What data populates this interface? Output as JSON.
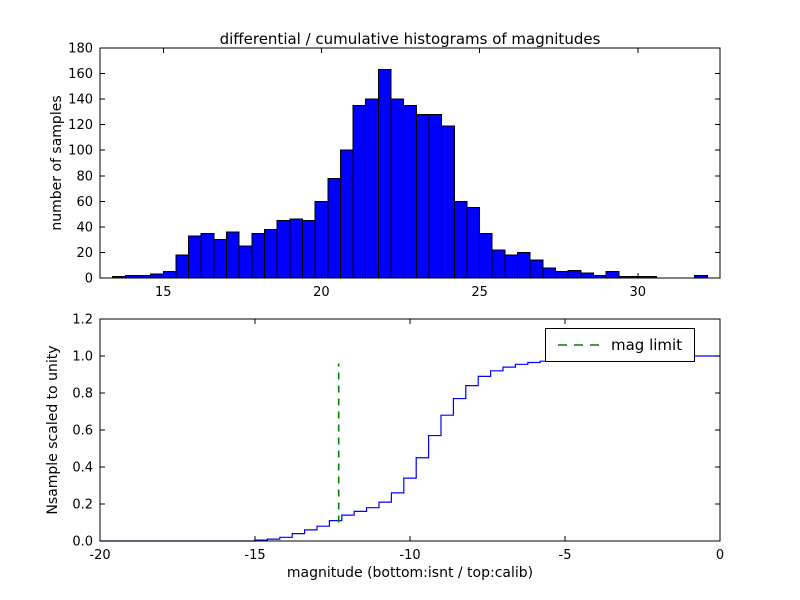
{
  "chart_data": [
    {
      "type": "bar",
      "title": "differential / cumulative histograms of magnitudes",
      "ylabel": "number of samples",
      "xlabel": "",
      "xlim": [
        13.0,
        32.6
      ],
      "ylim": [
        0,
        180
      ],
      "xticks": [
        15,
        20,
        25,
        30
      ],
      "xtick_labels": [
        "15",
        "20",
        "25",
        "30"
      ],
      "yticks": [
        0,
        20,
        40,
        60,
        80,
        100,
        120,
        140,
        160,
        180
      ],
      "ytick_labels": [
        "0",
        "20",
        "40",
        "60",
        "80",
        "100",
        "120",
        "140",
        "160",
        "180"
      ],
      "bar_color": "#0000ff",
      "bar_edge_color": "#000000",
      "bin_start": 13.4,
      "bin_width": 0.4,
      "counts": [
        1,
        2,
        2,
        3,
        5,
        18,
        33,
        35,
        30,
        36,
        25,
        35,
        38,
        45,
        46,
        45,
        60,
        78,
        100,
        135,
        140,
        163,
        140,
        135,
        128,
        128,
        119,
        60,
        55,
        35,
        22,
        18,
        20,
        14,
        8,
        5,
        6,
        4,
        2,
        5,
        1,
        1,
        1,
        0,
        0,
        0,
        2
      ]
    },
    {
      "type": "line",
      "title": "",
      "ylabel": "Nsample scaled to unity",
      "xlabel": "magnitude (bottom:isnt / top:calib)",
      "xlim": [
        -20,
        0
      ],
      "ylim": [
        0,
        1.2
      ],
      "xticks": [
        -20,
        -15,
        -10,
        -5,
        0
      ],
      "xtick_labels": [
        "-20",
        "-15",
        "-10",
        "-5",
        "0"
      ],
      "yticks": [
        0,
        0.2,
        0.4,
        0.6,
        0.8,
        1.0,
        1.2
      ],
      "ytick_labels": [
        "0.0",
        "0.2",
        "0.4",
        "0.6",
        "0.8",
        "1.0",
        "1.2"
      ],
      "line_color": "#0000ff",
      "step": true,
      "x": [
        -20,
        -15.0,
        -14.6,
        -14.2,
        -13.8,
        -13.4,
        -13.0,
        -12.6,
        -12.2,
        -11.8,
        -11.4,
        -11.0,
        -10.6,
        -10.2,
        -9.8,
        -9.4,
        -9.0,
        -8.6,
        -8.2,
        -7.8,
        -7.4,
        -7.0,
        -6.6,
        -6.2,
        -5.8,
        -5.4,
        -5.0,
        -4.6,
        -4.2,
        -3.8,
        -3.4,
        -3.0,
        -2.6,
        -2.2,
        -1.8,
        -1.4,
        -1.0,
        0
      ],
      "y": [
        0,
        0.005,
        0.01,
        0.02,
        0.04,
        0.06,
        0.08,
        0.11,
        0.14,
        0.16,
        0.18,
        0.21,
        0.26,
        0.34,
        0.45,
        0.57,
        0.68,
        0.77,
        0.84,
        0.89,
        0.92,
        0.94,
        0.955,
        0.965,
        0.972,
        0.978,
        0.983,
        0.987,
        0.99,
        0.992,
        0.994,
        0.996,
        0.997,
        0.998,
        0.998,
        1.0,
        1.0,
        1.0
      ],
      "vline": {
        "x": -12.3,
        "ymin": 0.1,
        "ymax": 0.96,
        "color": "#008000",
        "style": "dashed"
      },
      "legend": {
        "position": "upper right",
        "entries": [
          {
            "label": "mag limit",
            "color": "#008000",
            "style": "dashed"
          }
        ]
      }
    }
  ]
}
